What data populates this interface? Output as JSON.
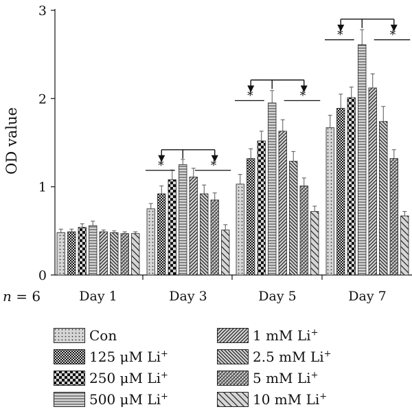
{
  "chart_data": {
    "type": "bar",
    "ylabel": "OD value",
    "ylim": [
      0,
      3
    ],
    "yticks": [
      "0",
      "1",
      "2",
      "3"
    ],
    "sample_note": {
      "var": "n",
      "text": " = 6"
    },
    "categories": [
      "Day 1",
      "Day 3",
      "Day 5",
      "Day 7"
    ],
    "series": [
      {
        "name": "Con",
        "name_main": "Con",
        "name_sup": "",
        "pattern": "dots",
        "values": [
          0.48,
          0.75,
          1.03,
          1.67
        ],
        "errors": [
          0.04,
          0.06,
          0.11,
          0.14
        ]
      },
      {
        "name": "125 μM Li+",
        "name_main": "125 μM Li",
        "name_sup": "+",
        "pattern": "check",
        "values": [
          0.49,
          0.92,
          1.32,
          1.89
        ],
        "errors": [
          0.03,
          0.09,
          0.11,
          0.16
        ]
      },
      {
        "name": "250 μM Li+",
        "name_main": "250 μM Li",
        "name_sup": "+",
        "pattern": "bigcheck",
        "values": [
          0.54,
          1.08,
          1.52,
          2.01
        ],
        "errors": [
          0.04,
          0.11,
          0.11,
          0.12
        ]
      },
      {
        "name": "500 μM Li+",
        "name_main": "500 μM Li",
        "name_sup": "+",
        "pattern": "hlines",
        "values": [
          0.56,
          1.25,
          1.95,
          2.61
        ],
        "errors": [
          0.05,
          0.06,
          0.14,
          0.17
        ]
      },
      {
        "name": "1 mM Li+",
        "name_main": "1 mM Li",
        "name_sup": "+",
        "pattern": "diag",
        "values": [
          0.49,
          1.11,
          1.63,
          2.12
        ],
        "errors": [
          0.02,
          0.1,
          0.13,
          0.16
        ]
      },
      {
        "name": "2.5 mM Li+",
        "name_main": "2.5 mM Li",
        "name_sup": "+",
        "pattern": "anti",
        "values": [
          0.48,
          0.92,
          1.29,
          1.74
        ],
        "errors": [
          0.02,
          0.1,
          0.11,
          0.17
        ]
      },
      {
        "name": "5 mM Li+",
        "name_main": "5 mM Li",
        "name_sup": "+",
        "pattern": "weave",
        "values": [
          0.47,
          0.85,
          1.01,
          1.32
        ],
        "errors": [
          0.02,
          0.08,
          0.09,
          0.1
        ]
      },
      {
        "name": "10 mM Li+",
        "name_main": "10 mM Li",
        "name_sup": "+",
        "pattern": "wideanti",
        "values": [
          0.47,
          0.51,
          0.72,
          0.67
        ],
        "errors": [
          0.02,
          0.06,
          0.06,
          0.05
        ]
      }
    ],
    "significance": [
      {
        "group": 1,
        "marker": "*",
        "compare": "left",
        "top_value": 1.42
      },
      {
        "group": 2,
        "marker": "*",
        "compare": "both",
        "top_value": 2.21
      },
      {
        "group": 3,
        "marker": "*",
        "compare": "both",
        "top_value": 2.9
      }
    ],
    "legend_position": "bottom",
    "grid": false
  }
}
